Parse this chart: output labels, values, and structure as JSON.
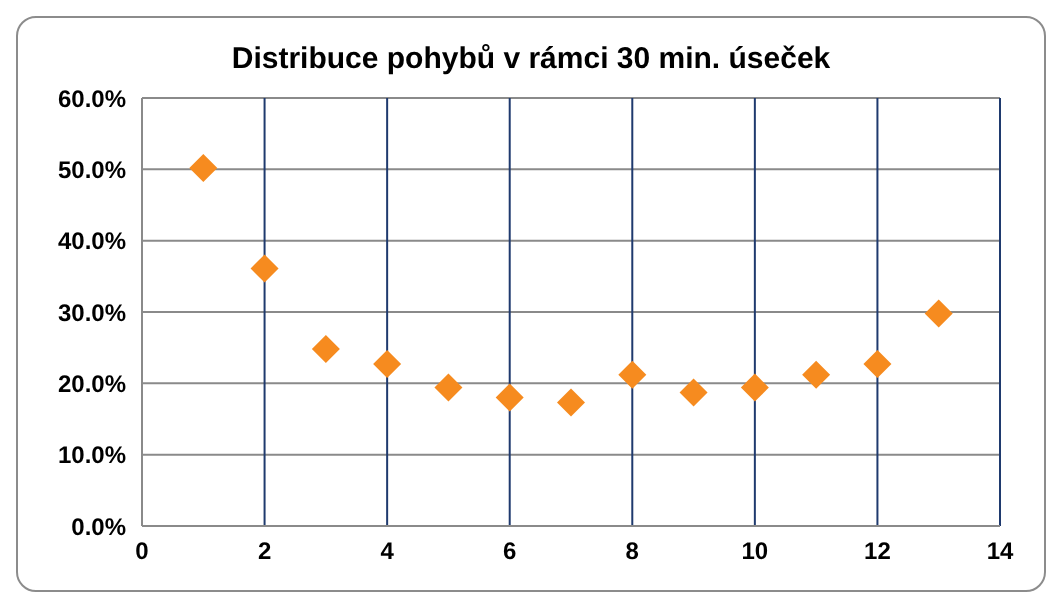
{
  "chart_data": {
    "type": "scatter",
    "title": "Distribuce pohybů v rámci 30 min. úseček",
    "x": [
      1,
      2,
      3,
      4,
      5,
      6,
      7,
      8,
      9,
      10,
      11,
      12,
      13
    ],
    "series": [
      {
        "color": "#f68b1f",
        "values": [
          50.2,
          36.1,
          24.8,
          22.7,
          19.4,
          18.0,
          17.3,
          21.2,
          18.7,
          19.4,
          21.2,
          22.7,
          29.8
        ]
      }
    ],
    "xlim": [
      0,
      14
    ],
    "xticks": [
      0,
      2,
      4,
      6,
      8,
      10,
      12,
      14
    ],
    "ylim": [
      0,
      60
    ],
    "yticks": [
      {
        "value": 0,
        "label": "0.0%"
      },
      {
        "value": 10,
        "label": "10.0%"
      },
      {
        "value": 20,
        "label": "20.0%"
      },
      {
        "value": 30,
        "label": "30.0%"
      },
      {
        "value": 40,
        "label": "40.0%"
      },
      {
        "value": 50,
        "label": "50.0%"
      },
      {
        "value": 60,
        "label": "60.0%"
      }
    ],
    "grid": true,
    "marker": "diamond",
    "legend": false
  }
}
